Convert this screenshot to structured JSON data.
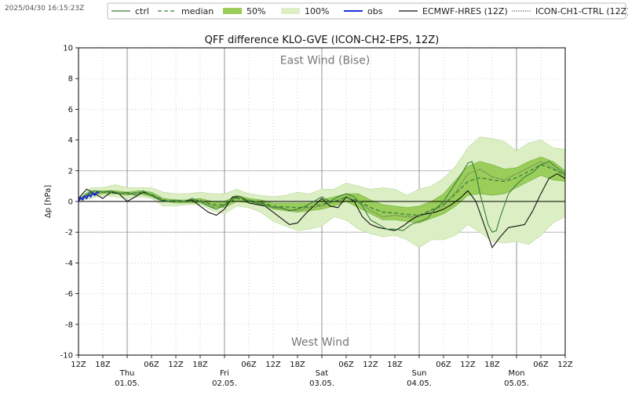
{
  "timestamp": "2025/04/30 16:15:23Z",
  "legend": [
    {
      "label": "ctrl",
      "style": "line",
      "color": "#3a7d3a"
    },
    {
      "label": "median",
      "style": "dashed",
      "color": "#3a7d3a"
    },
    {
      "label": "50%",
      "style": "fill",
      "color": "#9acd5a"
    },
    {
      "label": "100%",
      "style": "fill",
      "color": "#dcefc4"
    },
    {
      "label": "obs",
      "style": "line",
      "color": "#1c2fd4"
    },
    {
      "label": "ECMWF-HRES (12Z)",
      "style": "line",
      "color": "#111111"
    },
    {
      "label": "ICON-CH1-CTRL (12Z)",
      "style": "dotted",
      "color": "#555555"
    }
  ],
  "chart_data": {
    "type": "line",
    "title": "QFF difference KLO-GVE (ICON-CH2-EPS, 12Z)",
    "ylabel": "Δp [hPa]",
    "ylim": [
      -10,
      10
    ],
    "yticks": [
      -10,
      -8,
      -6,
      -4,
      -2,
      0,
      2,
      4,
      6,
      8,
      10
    ],
    "xlim": [
      0,
      120
    ],
    "grid": true,
    "legend_position": "top",
    "annotations": {
      "top": "East Wind (Bise)",
      "bottom": "West Wind"
    },
    "x_unit": "hours since 2025-04-30 12Z",
    "xticks": [
      {
        "x": 0,
        "label": "12Z"
      },
      {
        "x": 6,
        "label": "18Z"
      },
      {
        "x": 12,
        "label": "Thu",
        "date": "01.05."
      },
      {
        "x": 18,
        "label": "06Z"
      },
      {
        "x": 24,
        "label": "12Z"
      },
      {
        "x": 30,
        "label": "18Z"
      },
      {
        "x": 36,
        "label": "Fri",
        "date": "02.05."
      },
      {
        "x": 42,
        "label": "06Z"
      },
      {
        "x": 48,
        "label": "12Z"
      },
      {
        "x": 54,
        "label": "18Z"
      },
      {
        "x": 60,
        "label": "Sat",
        "date": "03.05."
      },
      {
        "x": 66,
        "label": "06Z"
      },
      {
        "x": 72,
        "label": "12Z"
      },
      {
        "x": 78,
        "label": "18Z"
      },
      {
        "x": 84,
        "label": "Sun",
        "date": "04.05."
      },
      {
        "x": 90,
        "label": "06Z"
      },
      {
        "x": 96,
        "label": "12Z"
      },
      {
        "x": 102,
        "label": "18Z"
      },
      {
        "x": 108,
        "label": "Mon",
        "date": "05.05."
      },
      {
        "x": 114,
        "label": "06Z"
      },
      {
        "x": 120,
        "label": "12Z"
      }
    ],
    "series": [
      {
        "name": "100%",
        "kind": "band",
        "color": "#dcefc4",
        "stroke": "#b9d99a",
        "x": [
          0,
          3,
          6,
          9,
          12,
          15,
          18,
          21,
          24,
          27,
          30,
          33,
          36,
          39,
          42,
          45,
          48,
          51,
          54,
          57,
          60,
          63,
          66,
          69,
          72,
          75,
          78,
          81,
          84,
          87,
          90,
          93,
          96,
          99,
          102,
          105,
          108,
          111,
          114,
          117,
          120
        ],
        "low": [
          0,
          0.2,
          0.4,
          0.3,
          0.2,
          0.3,
          0.2,
          -0.3,
          -0.3,
          -0.2,
          -0.2,
          -0.6,
          -0.8,
          -0.3,
          -0.4,
          -0.7,
          -1.3,
          -1.6,
          -1.9,
          -1.8,
          -1.6,
          -1.0,
          -1.2,
          -1.8,
          -2.1,
          -2.3,
          -2.2,
          -2.5,
          -3.0,
          -2.5,
          -2.5,
          -2.2,
          -1.5,
          -2.0,
          -2.6,
          -2.7,
          -2.6,
          -2.8,
          -2.2,
          -1.4,
          -1.0
        ],
        "high": [
          0.2,
          0.9,
          0.9,
          1.1,
          0.9,
          0.9,
          0.9,
          0.6,
          0.5,
          0.5,
          0.6,
          0.5,
          0.5,
          0.8,
          0.5,
          0.4,
          0.3,
          0.4,
          0.6,
          0.5,
          0.8,
          0.8,
          1.2,
          1.0,
          0.8,
          0.9,
          0.8,
          0.4,
          0.8,
          1.0,
          1.5,
          2.3,
          3.5,
          4.2,
          4.1,
          3.9,
          3.3,
          3.8,
          4.0,
          3.5,
          3.4
        ]
      },
      {
        "name": "50%",
        "kind": "band",
        "color": "#9acd5a",
        "stroke": "#6fae3a",
        "x": [
          0,
          3,
          6,
          9,
          12,
          15,
          18,
          21,
          24,
          27,
          30,
          33,
          36,
          39,
          42,
          45,
          48,
          51,
          54,
          57,
          60,
          63,
          66,
          69,
          72,
          75,
          78,
          81,
          84,
          87,
          90,
          93,
          96,
          99,
          102,
          105,
          108,
          111,
          114,
          117,
          120
        ],
        "low": [
          0.1,
          0.4,
          0.5,
          0.5,
          0.4,
          0.5,
          0.3,
          0,
          -0.1,
          -0.1,
          -0.1,
          -0.4,
          -0.4,
          0,
          -0.1,
          -0.2,
          -0.5,
          -0.6,
          -0.7,
          -0.6,
          -0.5,
          -0.3,
          0,
          -0.4,
          -0.8,
          -1.2,
          -1.2,
          -1.3,
          -1.4,
          -1.1,
          -0.8,
          -0.3,
          0.4,
          0.5,
          0.4,
          0.5,
          0.9,
          1.3,
          1.7,
          1.4,
          1.3
        ],
        "high": [
          0.1,
          0.7,
          0.7,
          0.7,
          0.6,
          0.7,
          0.6,
          0.2,
          0.1,
          0.1,
          0.2,
          0,
          0,
          0.4,
          0.2,
          0.1,
          -0.1,
          -0.1,
          -0.1,
          -0.1,
          0.1,
          0.3,
          0.5,
          0.5,
          0.1,
          -0.2,
          -0.3,
          -0.4,
          -0.3,
          0,
          0.5,
          1.4,
          2.3,
          2.6,
          2.4,
          2.1,
          2.2,
          2.6,
          2.9,
          2.6,
          2.0
        ]
      },
      {
        "name": "median",
        "kind": "line",
        "style": "dashed",
        "color": "#3a7d3a",
        "x": [
          0,
          3,
          6,
          9,
          12,
          15,
          18,
          21,
          24,
          27,
          30,
          33,
          36,
          39,
          42,
          45,
          48,
          51,
          54,
          57,
          60,
          63,
          66,
          69,
          72,
          75,
          78,
          81,
          84,
          87,
          90,
          93,
          96,
          99,
          102,
          105,
          108,
          111,
          114,
          117,
          120
        ],
        "y": [
          0.1,
          0.55,
          0.6,
          0.6,
          0.5,
          0.6,
          0.45,
          0.1,
          0,
          0,
          0.05,
          -0.2,
          -0.2,
          0.2,
          0.05,
          -0.05,
          -0.3,
          -0.35,
          -0.4,
          -0.35,
          -0.2,
          0,
          0.25,
          0.05,
          -0.4,
          -0.7,
          -0.75,
          -0.85,
          -0.9,
          -0.55,
          -0.2,
          0.5,
          1.3,
          1.55,
          1.4,
          1.3,
          1.55,
          1.95,
          2.4,
          2.1,
          1.7
        ]
      },
      {
        "name": "ctrl",
        "kind": "line",
        "style": "solid",
        "color": "#3a7d3a",
        "x": [
          0,
          2,
          4,
          6,
          8,
          10,
          12,
          14,
          16,
          18,
          20,
          22,
          24,
          26,
          28,
          30,
          32,
          34,
          36,
          38,
          40,
          42,
          44,
          46,
          48,
          50,
          52,
          54,
          56,
          58,
          60,
          62,
          64,
          66,
          68,
          70,
          72,
          74,
          76,
          78,
          80,
          82,
          84,
          86,
          88,
          90,
          92,
          94,
          96,
          97,
          98,
          99,
          100,
          101,
          102,
          103,
          104,
          106,
          108,
          110,
          112,
          114,
          116,
          118,
          120
        ],
        "y": [
          0.1,
          0.5,
          0.7,
          0.6,
          0.7,
          0.5,
          0.6,
          0.4,
          0.7,
          0.4,
          0.1,
          0,
          0.1,
          0,
          0.2,
          0,
          -0.3,
          -0.5,
          -0.2,
          0.2,
          0.3,
          0,
          -0.1,
          -0.2,
          -0.4,
          -0.4,
          -0.6,
          -0.5,
          -0.3,
          0,
          0.3,
          0,
          0.3,
          0.5,
          0.3,
          -0.3,
          -1.2,
          -1.5,
          -1.8,
          -1.8,
          -1.9,
          -1.5,
          -1.3,
          -1.1,
          -0.5,
          0,
          0.8,
          1.6,
          2.5,
          2.6,
          1.8,
          0.5,
          -0.5,
          -1.5,
          -2.0,
          -1.9,
          -1.0,
          0.5,
          1.1,
          1.6,
          1.9,
          2.4,
          2.6,
          2.2,
          1.8
        ]
      },
      {
        "name": "ICON-CH1-CTRL (12Z)",
        "kind": "line",
        "style": "dotted",
        "color": "#555555",
        "x": [
          0,
          3,
          6,
          9,
          12,
          15,
          18,
          21,
          24,
          27,
          30,
          33,
          36,
          39,
          42,
          45,
          48,
          51,
          54,
          57,
          60,
          63,
          66,
          69,
          72,
          75,
          78,
          81,
          84,
          87,
          90,
          93,
          96,
          99,
          102,
          105,
          108,
          111,
          114,
          117,
          120
        ],
        "y": [
          0.1,
          0.5,
          0.6,
          0.6,
          0.5,
          0.6,
          0.45,
          0.05,
          0,
          0,
          0.1,
          -0.3,
          -0.3,
          0.3,
          0.1,
          -0.1,
          -0.4,
          -0.5,
          -0.6,
          -0.4,
          -0.3,
          0,
          0.3,
          0,
          -0.6,
          -1.0,
          -0.9,
          -1.0,
          -1.0,
          -0.6,
          -0.3,
          0.6,
          1.8,
          2.1,
          1.6,
          1.4,
          1.8,
          2.2,
          2.6,
          2.2,
          1.7
        ]
      },
      {
        "name": "ECMWF-HRES (12Z)",
        "kind": "line",
        "style": "solid",
        "color": "#111111",
        "x": [
          0,
          2,
          4,
          6,
          8,
          10,
          12,
          14,
          16,
          18,
          20,
          22,
          24,
          26,
          28,
          30,
          32,
          34,
          36,
          38,
          40,
          42,
          44,
          46,
          48,
          50,
          52,
          54,
          56,
          58,
          60,
          62,
          64,
          66,
          68,
          70,
          72,
          74,
          76,
          78,
          80,
          82,
          84,
          86,
          88,
          90,
          92,
          94,
          96,
          98,
          100,
          102,
          104,
          106,
          108,
          110,
          112,
          114,
          116,
          118,
          120
        ],
        "y": [
          0.2,
          0.8,
          0.5,
          0.2,
          0.6,
          0.5,
          0.0,
          0.3,
          0.6,
          0.4,
          0.1,
          0.0,
          0.0,
          0.0,
          0.1,
          -0.3,
          -0.7,
          -0.9,
          -0.5,
          0.3,
          0.3,
          -0.1,
          -0.2,
          -0.3,
          -0.7,
          -1.1,
          -1.5,
          -1.4,
          -0.8,
          -0.3,
          0.2,
          -0.3,
          -0.4,
          0.3,
          0.0,
          -1.0,
          -1.5,
          -1.7,
          -1.8,
          -1.9,
          -1.6,
          -1.2,
          -0.9,
          -0.8,
          -0.7,
          -0.5,
          -0.2,
          0.2,
          0.7,
          0.0,
          -1.5,
          -3.0,
          -2.3,
          -1.7,
          -1.6,
          -1.5,
          -0.6,
          0.5,
          1.5,
          1.8,
          1.5
        ]
      },
      {
        "name": "obs",
        "kind": "line",
        "style": "solid",
        "color": "#1c2fd4",
        "x": [
          0,
          0.5,
          1,
          1.5,
          2,
          2.5,
          3,
          3.5,
          4,
          4.5,
          5
        ],
        "y": [
          0.0,
          0.25,
          0.1,
          0.35,
          0.2,
          0.45,
          0.3,
          0.55,
          0.4,
          0.6,
          0.55
        ]
      }
    ]
  }
}
